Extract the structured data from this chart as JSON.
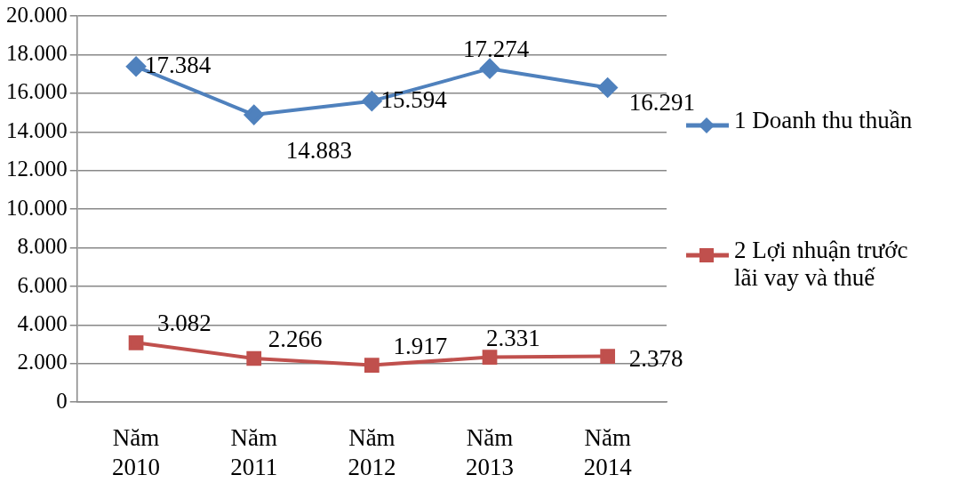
{
  "chart_data": {
    "type": "line",
    "categories": [
      "Năm 2010",
      "Năm 2011",
      "Năm 2012",
      "Năm 2013",
      "Năm 2014"
    ],
    "series": [
      {
        "name": "1 Doanh thu thuần",
        "color": "#4f81bd",
        "marker": "diamond",
        "values": [
          17384,
          14883,
          15594,
          17274,
          16291
        ],
        "value_labels": [
          "17.384",
          "14.883",
          "15.594",
          "17.274",
          "16.291"
        ]
      },
      {
        "name": "2 Lợi nhuận trước lãi vay và thuế",
        "color": "#c0504d",
        "marker": "square",
        "values": [
          3082,
          2266,
          1917,
          2331,
          2378
        ],
        "value_labels": [
          "3.082",
          "2.266",
          "1.917",
          "2.331",
          "2.378"
        ]
      }
    ],
    "ylim": [
      0,
      20000
    ],
    "yticks": [
      {
        "value": 0,
        "label": "0"
      },
      {
        "value": 2000,
        "label": "2.000"
      },
      {
        "value": 4000,
        "label": "4.000"
      },
      {
        "value": 6000,
        "label": "6.000"
      },
      {
        "value": 8000,
        "label": "8.000"
      },
      {
        "value": 10000,
        "label": "10.000"
      },
      {
        "value": 12000,
        "label": "12.000"
      },
      {
        "value": 14000,
        "label": "14.000"
      },
      {
        "value": 16000,
        "label": "16.000"
      },
      {
        "value": 18000,
        "label": "18.000"
      },
      {
        "value": 20000,
        "label": "20.000"
      }
    ],
    "grid": "y",
    "legend": "right",
    "line_style": "solid"
  }
}
